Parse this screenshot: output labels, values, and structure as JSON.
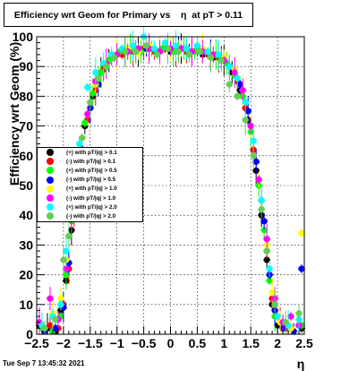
{
  "header": {
    "title": "Efficiency wrt Geom for Primary vs    η  at pT > 0.11"
  },
  "footer": {
    "timestamp": "Tue Sep  7 13:45:32 2021"
  },
  "legend": {
    "items": [
      {
        "label": "(+) with pT/|q| > 0.1",
        "color": "#000000"
      },
      {
        "label": "(-) with pT/|q| > 0.1",
        "color": "#ff0000"
      },
      {
        "label": "(+) with pT/|q| > 0.5",
        "color": "#00ff00"
      },
      {
        "label": "(-) with pT/|q| > 0.5",
        "color": "#0000ff"
      },
      {
        "label": "(+) with pT/|q| > 1.0",
        "color": "#ffff00"
      },
      {
        "label": "(-) with pT/|q| > 1.0",
        "color": "#ff00ff"
      },
      {
        "label": "(+) with pT/|q| > 2.0",
        "color": "#00ffff"
      },
      {
        "label": "(-) with pT/|q| > 2.0",
        "color": "#66cc55"
      }
    ]
  },
  "chart_data": {
    "type": "scatter",
    "xlabel": "η",
    "ylabel": "Efficiency wrt Geom (%)",
    "xlim": [
      -2.5,
      2.5
    ],
    "ylim": [
      0,
      100
    ],
    "xticks": [
      "−2.5",
      "−2",
      "−1.5",
      "−1",
      "−0.5",
      "0",
      "0.5",
      "1",
      "1.5",
      "2",
      "2.5"
    ],
    "yticks": [
      "0",
      "10",
      "20",
      "30",
      "40",
      "50",
      "60",
      "70",
      "80",
      "90",
      "100"
    ],
    "grid": true,
    "legend_position": "middle-left",
    "series": [
      {
        "name": "(+) with pT/|q| > 0.1",
        "color": "#000000",
        "x": [
          -2.45,
          -2.3,
          -2.15,
          -2.05,
          -1.95,
          -1.85,
          -1.75,
          -1.6,
          -1.45,
          -1.3,
          -1.15,
          -1.0,
          -0.8,
          -0.6,
          -0.4,
          -0.2,
          0.0,
          0.2,
          0.4,
          0.6,
          0.8,
          1.0,
          1.15,
          1.3,
          1.45,
          1.6,
          1.7,
          1.8,
          1.9,
          2.0,
          2.15,
          2.3,
          2.45
        ],
        "y": [
          3,
          2,
          1,
          8,
          18,
          35,
          55,
          70,
          80,
          88,
          92,
          94,
          95,
          95,
          96,
          95,
          95,
          96,
          95,
          94,
          93,
          92,
          88,
          82,
          72,
          55,
          40,
          25,
          10,
          3,
          2,
          1,
          2
        ]
      },
      {
        "name": "(-) with pT/|q| > 0.1",
        "color": "#ff0000",
        "x": [
          -2.4,
          -2.25,
          -2.1,
          -2.0,
          -1.9,
          -1.8,
          -1.7,
          -1.55,
          -1.4,
          -1.25,
          -1.1,
          -0.9,
          -0.7,
          -0.5,
          -0.3,
          -0.1,
          0.1,
          0.3,
          0.5,
          0.7,
          0.9,
          1.1,
          1.25,
          1.4,
          1.55,
          1.7,
          1.8,
          1.9,
          2.05,
          2.2,
          2.4
        ],
        "y": [
          2,
          3,
          2,
          10,
          22,
          40,
          58,
          72,
          82,
          89,
          93,
          94,
          95,
          96,
          95,
          96,
          95,
          95,
          96,
          94,
          93,
          90,
          85,
          76,
          62,
          45,
          28,
          12,
          4,
          2,
          3
        ]
      },
      {
        "name": "(+) with pT/|q| > 0.5",
        "color": "#00ff00",
        "x": [
          -2.4,
          -2.2,
          -2.05,
          -1.95,
          -1.85,
          -1.75,
          -1.6,
          -1.45,
          -1.3,
          -1.15,
          -0.95,
          -0.75,
          -0.55,
          -0.35,
          -0.15,
          0.05,
          0.25,
          0.45,
          0.65,
          0.85,
          1.05,
          1.2,
          1.35,
          1.5,
          1.65,
          1.75,
          1.85,
          1.95,
          2.1,
          2.3,
          2.45
        ],
        "y": [
          2,
          1,
          6,
          20,
          38,
          56,
          71,
          81,
          88,
          92,
          95,
          96,
          95,
          96,
          96,
          95,
          96,
          95,
          95,
          94,
          91,
          87,
          80,
          68,
          50,
          35,
          18,
          6,
          2,
          1,
          3
        ]
      },
      {
        "name": "(-) with pT/|q| > 0.5",
        "color": "#0000ff",
        "x": [
          -2.35,
          -2.15,
          -2.0,
          -1.9,
          -1.8,
          -1.65,
          -1.5,
          -1.35,
          -1.2,
          -1.05,
          -0.85,
          -0.65,
          -0.45,
          -0.25,
          -0.05,
          0.15,
          0.35,
          0.55,
          0.75,
          0.95,
          1.1,
          1.3,
          1.45,
          1.6,
          1.75,
          1.85,
          1.95,
          2.1,
          2.3,
          2.45
        ],
        "y": [
          1,
          2,
          9,
          24,
          42,
          62,
          76,
          84,
          90,
          93,
          95,
          95,
          96,
          95,
          96,
          96,
          95,
          95,
          94,
          93,
          90,
          84,
          75,
          58,
          38,
          20,
          8,
          2,
          1,
          22
        ]
      },
      {
        "name": "(+) with pT/|q| > 1.0",
        "color": "#ffff00",
        "x": [
          -2.4,
          -2.2,
          -2.05,
          -1.95,
          -1.8,
          -1.7,
          -1.55,
          -1.4,
          -1.2,
          -1.0,
          -0.8,
          -0.6,
          -0.4,
          -0.2,
          0.0,
          0.2,
          0.4,
          0.6,
          0.8,
          1.0,
          1.2,
          1.35,
          1.5,
          1.65,
          1.8,
          1.9,
          2.05,
          2.25,
          2.45
        ],
        "y": [
          3,
          7,
          12,
          25,
          45,
          60,
          74,
          84,
          91,
          94,
          96,
          95,
          97,
          95,
          96,
          96,
          95,
          96,
          94,
          93,
          89,
          82,
          70,
          52,
          30,
          14,
          4,
          2,
          34
        ]
      },
      {
        "name": "(-) with pT/|q| > 1.0",
        "color": "#ff00ff",
        "x": [
          -2.45,
          -2.25,
          -2.1,
          -1.95,
          -1.85,
          -1.7,
          -1.55,
          -1.4,
          -1.2,
          -1.0,
          -0.8,
          -0.6,
          -0.4,
          -0.2,
          0.0,
          0.2,
          0.4,
          0.6,
          0.8,
          1.0,
          1.2,
          1.35,
          1.5,
          1.65,
          1.8,
          1.95,
          2.1,
          2.25,
          2.4
        ],
        "y": [
          4,
          12,
          5,
          22,
          40,
          62,
          74,
          85,
          91,
          94,
          95,
          96,
          96,
          95,
          96,
          96,
          95,
          95,
          94,
          92,
          88,
          82,
          70,
          52,
          32,
          12,
          4,
          6,
          3
        ]
      },
      {
        "name": "(+) with pT/|q| > 2.0",
        "color": "#00ffff",
        "x": [
          -2.4,
          -2.2,
          -2.05,
          -1.95,
          -1.85,
          -1.7,
          -1.55,
          -1.4,
          -1.25,
          -1.1,
          -0.9,
          -0.7,
          -0.5,
          -0.3,
          -0.1,
          0.1,
          0.3,
          0.5,
          0.7,
          0.9,
          1.1,
          1.25,
          1.4,
          1.55,
          1.7,
          1.85,
          2.0,
          2.2,
          2.4
        ],
        "y": [
          3,
          6,
          10,
          28,
          44,
          64,
          83,
          88,
          91,
          94,
          96,
          97,
          100,
          96,
          98,
          97,
          96,
          97,
          95,
          94,
          90,
          86,
          78,
          65,
          45,
          22,
          6,
          3,
          5
        ]
      },
      {
        "name": "(-) with pT/|q| > 2.0",
        "color": "#66cc55",
        "x": [
          -2.35,
          -2.15,
          -2.0,
          -1.9,
          -1.8,
          -1.65,
          -1.5,
          -1.35,
          -1.2,
          -1.05,
          -0.85,
          -0.65,
          -0.45,
          -0.25,
          -0.05,
          0.15,
          0.35,
          0.55,
          0.75,
          0.95,
          1.1,
          1.25,
          1.4,
          1.55,
          1.7,
          1.8,
          1.95,
          2.15,
          2.4
        ],
        "y": [
          2,
          5,
          25,
          33,
          50,
          66,
          78,
          86,
          90,
          93,
          95,
          95,
          97,
          94,
          96,
          95,
          94,
          95,
          93,
          92,
          84,
          80,
          72,
          60,
          42,
          28,
          10,
          4,
          7
        ]
      }
    ]
  }
}
